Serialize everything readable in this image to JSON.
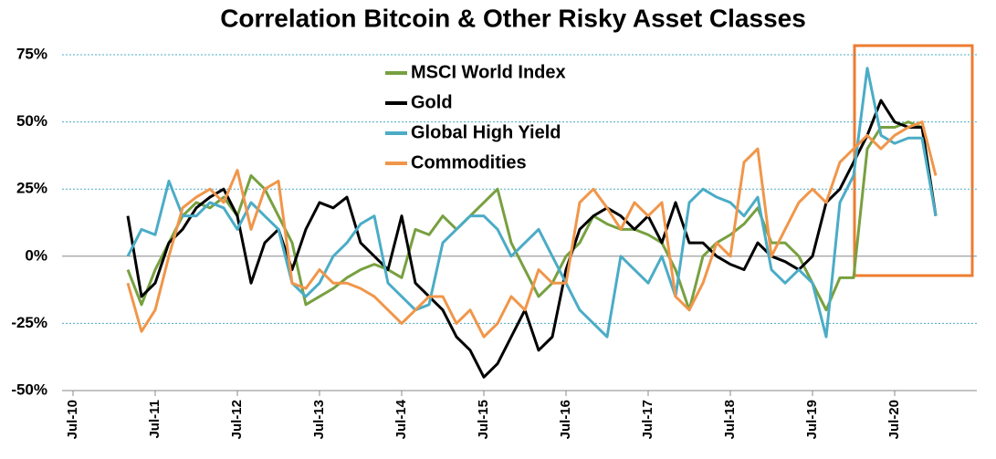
{
  "chart_data": {
    "type": "line",
    "title": "Correlation Bitcoin & Other Risky Asset Classes",
    "categories": [
      "Jul-10",
      null,
      null,
      null,
      null,
      null,
      "Jul-11",
      null,
      null,
      null,
      null,
      null,
      "Jul-12",
      null,
      null,
      null,
      null,
      null,
      "Jul-13",
      null,
      null,
      null,
      null,
      null,
      "Jul-14",
      null,
      null,
      null,
      null,
      null,
      "Jul-15",
      null,
      null,
      null,
      null,
      null,
      "Jul-16",
      null,
      null,
      null,
      null,
      null,
      "Jul-17",
      null,
      null,
      null,
      null,
      null,
      "Jul-18",
      null,
      null,
      null,
      null,
      null,
      "Jul-19",
      null,
      null,
      null,
      null,
      null,
      "Jul-20",
      null,
      null,
      null
    ],
    "series": [
      {
        "name": "MSCI World Index",
        "color": "#77a040",
        "values": [
          null,
          null,
          null,
          null,
          -5,
          -18,
          -5,
          5,
          15,
          20,
          18,
          22,
          15,
          30,
          25,
          15,
          5,
          -18,
          -15,
          -12,
          -8,
          -5,
          -3,
          -5,
          -8,
          10,
          8,
          15,
          10,
          15,
          20,
          25,
          5,
          -5,
          -15,
          -10,
          0,
          5,
          15,
          12,
          10,
          10,
          8,
          5,
          -5,
          -20,
          0,
          5,
          8,
          12,
          18,
          5,
          5,
          0,
          -10,
          -20,
          -8,
          -8,
          40,
          48,
          48,
          50,
          48,
          15
        ]
      },
      {
        "name": "Gold",
        "color": "#000000",
        "values": [
          null,
          null,
          null,
          null,
          15,
          -15,
          -10,
          5,
          10,
          18,
          22,
          25,
          15,
          -10,
          5,
          10,
          -5,
          10,
          20,
          18,
          22,
          5,
          0,
          -5,
          15,
          -10,
          -15,
          -20,
          -30,
          -35,
          -45,
          -40,
          -30,
          -20,
          -35,
          -30,
          -5,
          10,
          15,
          18,
          15,
          10,
          15,
          5,
          20,
          5,
          5,
          0,
          -3,
          -5,
          5,
          0,
          -2,
          -5,
          0,
          20,
          25,
          35,
          45,
          58,
          50,
          48,
          48,
          15
        ]
      },
      {
        "name": "Global High Yield",
        "color": "#4bacc6",
        "values": [
          null,
          null,
          null,
          null,
          0,
          10,
          8,
          28,
          15,
          15,
          20,
          18,
          10,
          20,
          15,
          10,
          -10,
          -15,
          -10,
          0,
          5,
          12,
          15,
          -10,
          -15,
          -20,
          -18,
          5,
          10,
          15,
          15,
          10,
          0,
          5,
          10,
          0,
          -10,
          -20,
          -25,
          -30,
          0,
          -5,
          -10,
          0,
          -15,
          20,
          25,
          22,
          20,
          15,
          22,
          -5,
          -10,
          -5,
          -10,
          -30,
          20,
          30,
          70,
          45,
          42,
          44,
          44,
          15
        ]
      },
      {
        "name": "Commodities",
        "color": "#f0964a",
        "values": [
          null,
          null,
          null,
          null,
          -10,
          -28,
          -20,
          0,
          18,
          22,
          25,
          20,
          32,
          10,
          25,
          28,
          -10,
          -12,
          -5,
          -10,
          -10,
          -12,
          -15,
          -20,
          -25,
          -20,
          -15,
          -15,
          -25,
          -20,
          -30,
          -25,
          -15,
          -20,
          -5,
          -10,
          -10,
          20,
          25,
          18,
          10,
          20,
          15,
          20,
          -15,
          -20,
          -10,
          5,
          0,
          35,
          40,
          0,
          10,
          20,
          25,
          20,
          35,
          40,
          45,
          40,
          45,
          48,
          50,
          30
        ]
      }
    ],
    "ylim": [
      -50,
      75
    ],
    "yticks": [
      {
        "value": -50,
        "label": "-50%"
      },
      {
        "value": -25,
        "label": "-25%"
      },
      {
        "value": 0,
        "label": "0%"
      },
      {
        "value": 25,
        "label": "25%"
      },
      {
        "value": 50,
        "label": "50%"
      },
      {
        "value": 75,
        "label": "75%"
      }
    ],
    "grid": true
  }
}
